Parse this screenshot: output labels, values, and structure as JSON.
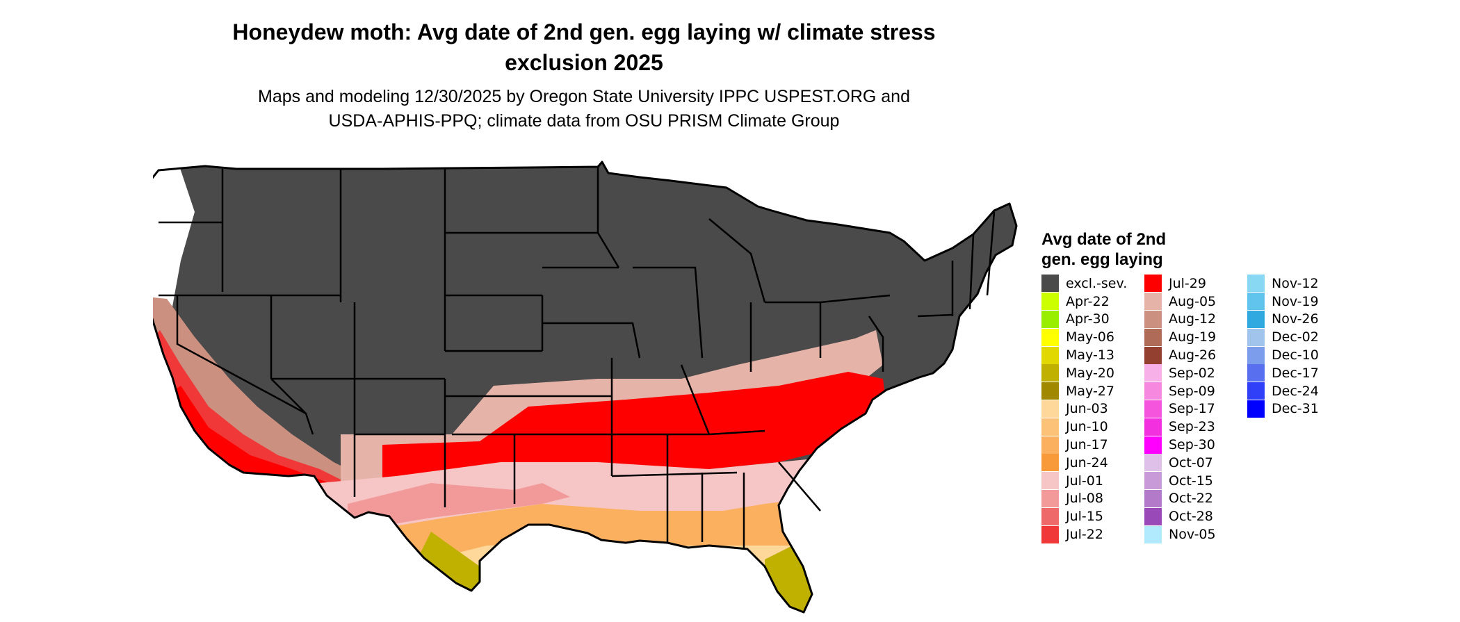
{
  "title": {
    "line1": "Honeydew moth: Avg date of 2nd gen. egg laying w/ climate stress",
    "line2": "exclusion 2025"
  },
  "subtitle": {
    "line1": "Maps and modeling 12/30/2025 by Oregon State University IPPC USPEST.ORG and",
    "line2": "USDA-APHIS-PPQ; climate data from OSU PRISM Climate Group"
  },
  "legend": {
    "title_line1": "Avg date of 2nd",
    "title_line2": "gen. egg laying",
    "items": [
      {
        "label": "excl.-sev.",
        "color": "#4a4a4a"
      },
      {
        "label": "Apr-22",
        "color": "#ccff00"
      },
      {
        "label": "Apr-30",
        "color": "#99ee00"
      },
      {
        "label": "May-06",
        "color": "#ffff00"
      },
      {
        "label": "May-13",
        "color": "#e0d800"
      },
      {
        "label": "May-20",
        "color": "#c0b000"
      },
      {
        "label": "May-27",
        "color": "#a08800"
      },
      {
        "label": "Jun-03",
        "color": "#fdd89a"
      },
      {
        "label": "Jun-10",
        "color": "#fcc378"
      },
      {
        "label": "Jun-17",
        "color": "#fbb060"
      },
      {
        "label": "Jun-24",
        "color": "#f99a3a"
      },
      {
        "label": "Jul-01",
        "color": "#f6c6c6"
      },
      {
        "label": "Jul-08",
        "color": "#f29a9a"
      },
      {
        "label": "Jul-15",
        "color": "#ee6a6a"
      },
      {
        "label": "Jul-22",
        "color": "#f03838"
      },
      {
        "label": "Jul-29",
        "color": "#ff0000"
      },
      {
        "label": "Aug-05",
        "color": "#e6b3a8"
      },
      {
        "label": "Aug-12",
        "color": "#cc9080"
      },
      {
        "label": "Aug-19",
        "color": "#b06a58"
      },
      {
        "label": "Aug-26",
        "color": "#944030"
      },
      {
        "label": "Sep-02",
        "color": "#f8b0e8"
      },
      {
        "label": "Sep-09",
        "color": "#f688e0"
      },
      {
        "label": "Sep-17",
        "color": "#f455dc"
      },
      {
        "label": "Sep-23",
        "color": "#f230e0"
      },
      {
        "label": "Sep-30",
        "color": "#ff00ff"
      },
      {
        "label": "Oct-07",
        "color": "#dfc0e8"
      },
      {
        "label": "Oct-15",
        "color": "#c89ad8"
      },
      {
        "label": "Oct-22",
        "color": "#b27ac8"
      },
      {
        "label": "Oct-28",
        "color": "#9a4ab8"
      },
      {
        "label": "Nov-05",
        "color": "#b0eafc"
      },
      {
        "label": "Nov-12",
        "color": "#88d8f4"
      },
      {
        "label": "Nov-19",
        "color": "#60c4ec"
      },
      {
        "label": "Nov-26",
        "color": "#30a8e0"
      },
      {
        "label": "Dec-02",
        "color": "#a0c4ec"
      },
      {
        "label": "Dec-10",
        "color": "#7c9cec"
      },
      {
        "label": "Dec-17",
        "color": "#5870f0"
      },
      {
        "label": "Dec-24",
        "color": "#3040f8"
      },
      {
        "label": "Dec-31",
        "color": "#0000ff"
      }
    ]
  }
}
